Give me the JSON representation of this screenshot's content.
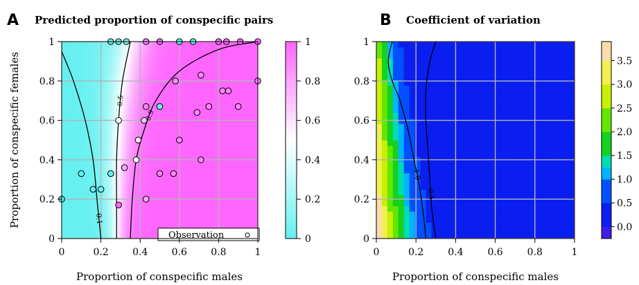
{
  "chart_data": [
    {
      "panel": "A",
      "type": "heatmap",
      "title": "Predicted proportion of conspecific pairs",
      "xlabel": "Proportion of conspecific males",
      "ylabel": "Proportion of conspecific females",
      "xlim": [
        0,
        1
      ],
      "ylim": [
        0,
        1
      ],
      "xticks": [
        "0",
        "0.2",
        "0.4",
        "0.6",
        "0.8",
        "1"
      ],
      "yticks": [
        "0",
        "0.2",
        "0.4",
        "0.6",
        "0.8",
        "1"
      ],
      "colorbar": {
        "min": 0,
        "max": 1,
        "low_color": "#66f0f0",
        "mid_color": "#ffffff",
        "high_color": "#ff66ff",
        "ticks": [
          "0",
          "0.2",
          "0.4",
          "0.6",
          "0.8",
          "1"
        ]
      },
      "contour_labels": [
        "0.1",
        "0.5",
        "0.9"
      ],
      "contours": [
        {
          "label": "0.1",
          "points": [
            [
              0.0,
              0.95
            ],
            [
              0.06,
              0.8
            ],
            [
              0.12,
              0.6
            ],
            [
              0.16,
              0.4
            ],
            [
              0.18,
              0.2
            ],
            [
              0.2,
              0.0
            ]
          ]
        },
        {
          "label": "0.5",
          "points": [
            [
              0.35,
              1.0
            ],
            [
              0.31,
              0.8
            ],
            [
              0.29,
              0.6
            ],
            [
              0.28,
              0.4
            ],
            [
              0.28,
              0.2
            ],
            [
              0.28,
              0.0
            ]
          ]
        },
        {
          "label": "0.9",
          "points": [
            [
              1.0,
              1.0
            ],
            [
              0.8,
              0.96
            ],
            [
              0.6,
              0.85
            ],
            [
              0.48,
              0.7
            ],
            [
              0.42,
              0.55
            ],
            [
              0.38,
              0.4
            ],
            [
              0.36,
              0.2
            ],
            [
              0.35,
              0.0
            ]
          ]
        }
      ],
      "legend": {
        "label": "Observation",
        "position": "bottom-right"
      },
      "points": [
        {
          "x": 0.0,
          "y": 0.2,
          "v": 0.0
        },
        {
          "x": 0.1,
          "y": 0.33,
          "v": 0.0
        },
        {
          "x": 0.16,
          "y": 0.25,
          "v": 0.0
        },
        {
          "x": 0.2,
          "y": 0.25,
          "v": 0.0
        },
        {
          "x": 0.25,
          "y": 0.33,
          "v": 0.0
        },
        {
          "x": 0.25,
          "y": 1.0,
          "v": 0.0
        },
        {
          "x": 0.29,
          "y": 1.0,
          "v": 0.0
        },
        {
          "x": 0.33,
          "y": 1.0,
          "v": 0.1
        },
        {
          "x": 0.29,
          "y": 0.6,
          "v": 0.5
        },
        {
          "x": 0.29,
          "y": 0.17,
          "v": 1.0
        },
        {
          "x": 0.32,
          "y": 0.36,
          "v": 0.8
        },
        {
          "x": 0.38,
          "y": 0.4,
          "v": 0.5
        },
        {
          "x": 0.39,
          "y": 0.5,
          "v": 0.6
        },
        {
          "x": 0.42,
          "y": 0.6,
          "v": 0.7
        },
        {
          "x": 0.43,
          "y": 0.2,
          "v": 0.8
        },
        {
          "x": 0.43,
          "y": 0.67,
          "v": 0.9
        },
        {
          "x": 0.43,
          "y": 1.0,
          "v": 0.9
        },
        {
          "x": 0.5,
          "y": 0.67,
          "v": 0.0
        },
        {
          "x": 0.5,
          "y": 1.0,
          "v": 1.0
        },
        {
          "x": 0.5,
          "y": 0.33,
          "v": 0.9
        },
        {
          "x": 0.57,
          "y": 0.33,
          "v": 0.9
        },
        {
          "x": 0.58,
          "y": 0.8,
          "v": 0.9
        },
        {
          "x": 0.6,
          "y": 1.0,
          "v": 0.0
        },
        {
          "x": 0.6,
          "y": 0.5,
          "v": 0.9
        },
        {
          "x": 0.67,
          "y": 1.0,
          "v": 0.0
        },
        {
          "x": 0.69,
          "y": 0.64,
          "v": 0.9
        },
        {
          "x": 0.71,
          "y": 0.83,
          "v": 0.9
        },
        {
          "x": 0.71,
          "y": 0.4,
          "v": 0.9
        },
        {
          "x": 0.75,
          "y": 0.67,
          "v": 0.9
        },
        {
          "x": 0.8,
          "y": 1.0,
          "v": 1.0
        },
        {
          "x": 0.82,
          "y": 0.75,
          "v": 0.9
        },
        {
          "x": 0.84,
          "y": 1.0,
          "v": 1.0
        },
        {
          "x": 0.85,
          "y": 0.75,
          "v": 0.9
        },
        {
          "x": 0.91,
          "y": 1.0,
          "v": 1.0
        },
        {
          "x": 0.9,
          "y": 0.67,
          "v": 0.9
        },
        {
          "x": 1.0,
          "y": 1.0,
          "v": 1.0
        },
        {
          "x": 1.0,
          "y": 0.8,
          "v": 0.9
        }
      ]
    },
    {
      "panel": "B",
      "type": "heatmap",
      "title": "Coefficient of variation",
      "xlabel": "Proportion of conspecific males",
      "ylabel": "",
      "xlim": [
        0,
        1
      ],
      "ylim": [
        0,
        1
      ],
      "xticks": [
        "0",
        "0.2",
        "0.4",
        "0.6",
        "0.8",
        "1"
      ],
      "yticks": [
        "0",
        "0.2",
        "0.4",
        "0.6",
        "0.8",
        "1"
      ],
      "colorbar": {
        "min": -0.25,
        "max": 3.9,
        "ticks": [
          "0.0",
          "0.5",
          "1.0",
          "1.5",
          "2.0",
          "2.5",
          "3.0",
          "3.5"
        ],
        "bands": [
          {
            "from": -0.25,
            "to": 0.0,
            "color": "#3e1ee6"
          },
          {
            "from": 0.0,
            "to": 0.5,
            "color": "#0a1ef0"
          },
          {
            "from": 0.5,
            "to": 1.0,
            "color": "#0050ff"
          },
          {
            "from": 1.0,
            "to": 1.25,
            "color": "#00b4ff"
          },
          {
            "from": 1.25,
            "to": 1.5,
            "color": "#00dcb4"
          },
          {
            "from": 1.5,
            "to": 2.0,
            "color": "#14d21e"
          },
          {
            "from": 2.0,
            "to": 2.5,
            "color": "#64e600"
          },
          {
            "from": 2.5,
            "to": 3.0,
            "color": "#c8f000"
          },
          {
            "from": 3.0,
            "to": 3.5,
            "color": "#f0f050"
          },
          {
            "from": 3.5,
            "to": 3.9,
            "color": "#fadcaa"
          }
        ]
      },
      "contour_labels": [
        "0.5",
        "1.0"
      ],
      "contours": [
        {
          "label": "1.0",
          "points": [
            [
              0.08,
              1.0
            ],
            [
              0.06,
              0.9
            ],
            [
              0.08,
              0.8
            ],
            [
              0.12,
              0.7
            ],
            [
              0.16,
              0.55
            ],
            [
              0.19,
              0.4
            ],
            [
              0.22,
              0.25
            ],
            [
              0.24,
              0.1
            ],
            [
              0.25,
              0.0
            ]
          ]
        },
        {
          "label": "0.5",
          "points": [
            [
              0.3,
              1.0
            ],
            [
              0.27,
              0.9
            ],
            [
              0.25,
              0.75
            ],
            [
              0.25,
              0.6
            ],
            [
              0.26,
              0.45
            ],
            [
              0.27,
              0.3
            ],
            [
              0.28,
              0.15
            ],
            [
              0.3,
              0.0
            ]
          ]
        }
      ]
    }
  ]
}
